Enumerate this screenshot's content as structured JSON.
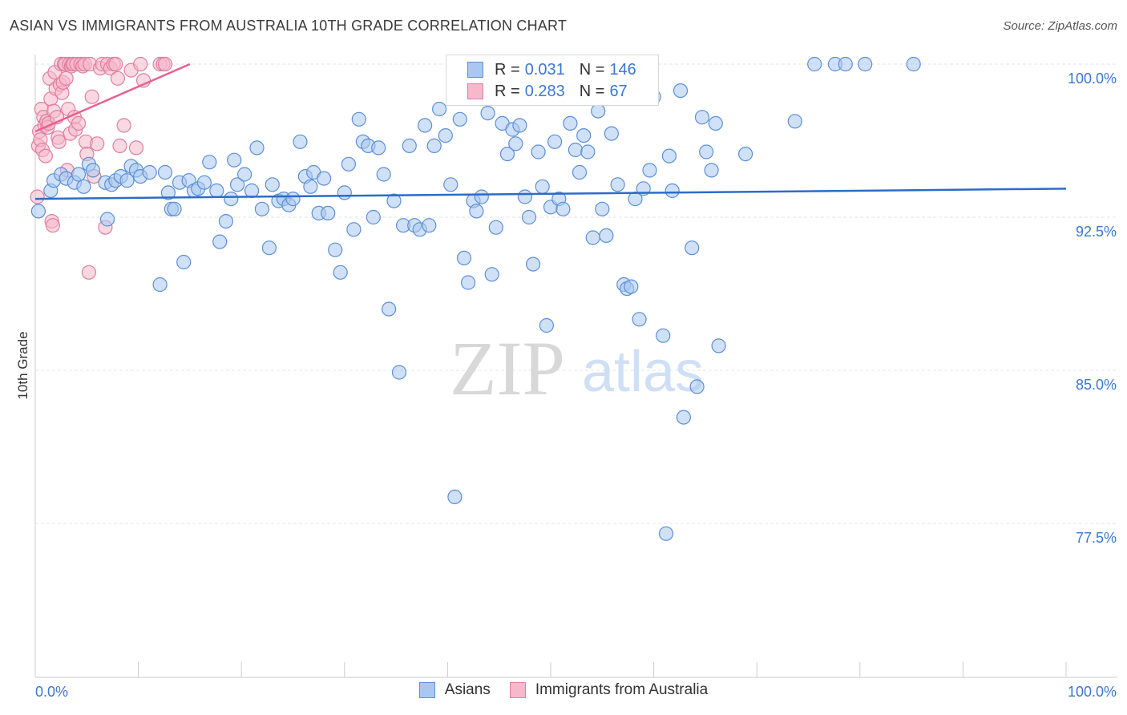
{
  "title": "ASIAN VS IMMIGRANTS FROM AUSTRALIA 10TH GRADE CORRELATION CHART",
  "source": "Source: ZipAtlas.com",
  "watermark": {
    "zip": "ZIP",
    "atlas": "atlas"
  },
  "colors": {
    "blue_fill": "#a9c8f0",
    "blue_stroke": "#5b8fd6",
    "blue_line": "#2b6cc9",
    "pink_fill": "#f6b8cb",
    "pink_stroke": "#e07ea0",
    "pink_line": "#e8608e",
    "axis_text": "#3b78d0",
    "grid": "#e3e3e3"
  },
  "legend": {
    "rows": [
      {
        "r_label": "R =",
        "r_value": "0.031",
        "n_label": "N =",
        "n_value": "146"
      },
      {
        "r_label": "R =",
        "r_value": "0.283",
        "n_label": "N =",
        "n_value": "67"
      }
    ]
  },
  "bottom_legend": {
    "items": [
      "Asians",
      "Immigrants from Australia"
    ]
  },
  "chart_data": {
    "type": "scatter",
    "title": "ASIAN VS IMMIGRANTS FROM AUSTRALIA 10TH GRADE CORRELATION CHART",
    "xlabel": "",
    "ylabel": "10th Grade",
    "xlim": [
      0,
      100
    ],
    "ylim": [
      70,
      100
    ],
    "x_tick_labels": [
      "0.0%",
      "100.0%"
    ],
    "y_ticks": [
      100,
      92.5,
      85,
      77.5
    ],
    "y_tick_labels": [
      "100.0%",
      "92.5%",
      "85.0%",
      "77.5%"
    ],
    "grid": true,
    "legend_position": "top-center",
    "series": [
      {
        "name": "Asians",
        "trend": [
          [
            0,
            93.4
          ],
          [
            100,
            93.9
          ]
        ],
        "points": [
          [
            0.3,
            92.8
          ],
          [
            1.5,
            93.8
          ],
          [
            1.8,
            94.3
          ],
          [
            2.5,
            94.6
          ],
          [
            3,
            94.4
          ],
          [
            3.8,
            94.2
          ],
          [
            4.2,
            94.6
          ],
          [
            4.7,
            94.0
          ],
          [
            5.2,
            95.1
          ],
          [
            5.6,
            94.8
          ],
          [
            6.8,
            94.2
          ],
          [
            7.0,
            92.4
          ],
          [
            7.4,
            94.1
          ],
          [
            7.8,
            94.3
          ],
          [
            8.3,
            94.5
          ],
          [
            8.9,
            94.3
          ],
          [
            9.3,
            95.0
          ],
          [
            9.8,
            94.8
          ],
          [
            10.2,
            94.5
          ],
          [
            11.1,
            94.7
          ],
          [
            12.1,
            89.2
          ],
          [
            12.6,
            94.7
          ],
          [
            12.9,
            93.7
          ],
          [
            13.2,
            92.9
          ],
          [
            13.5,
            92.9
          ],
          [
            14.0,
            94.2
          ],
          [
            14.4,
            90.3
          ],
          [
            14.9,
            94.3
          ],
          [
            15.4,
            93.8
          ],
          [
            15.8,
            93.9
          ],
          [
            16.4,
            94.2
          ],
          [
            16.9,
            95.2
          ],
          [
            17.6,
            93.8
          ],
          [
            17.9,
            91.3
          ],
          [
            18.5,
            92.3
          ],
          [
            19.0,
            93.4
          ],
          [
            19.3,
            95.3
          ],
          [
            19.6,
            94.1
          ],
          [
            20.3,
            94.6
          ],
          [
            21.0,
            93.8
          ],
          [
            21.5,
            95.9
          ],
          [
            22.0,
            92.9
          ],
          [
            22.7,
            91.0
          ],
          [
            23.0,
            94.1
          ],
          [
            23.6,
            93.3
          ],
          [
            24.1,
            93.4
          ],
          [
            24.6,
            93.1
          ],
          [
            25.0,
            93.4
          ],
          [
            25.7,
            96.2
          ],
          [
            26.2,
            94.5
          ],
          [
            26.7,
            94.0
          ],
          [
            27.0,
            94.7
          ],
          [
            27.5,
            92.7
          ],
          [
            28.0,
            94.4
          ],
          [
            28.4,
            92.7
          ],
          [
            29.1,
            90.9
          ],
          [
            29.6,
            89.8
          ],
          [
            30.0,
            93.7
          ],
          [
            30.4,
            95.1
          ],
          [
            30.9,
            91.9
          ],
          [
            31.4,
            97.3
          ],
          [
            31.8,
            96.2
          ],
          [
            32.3,
            96.0
          ],
          [
            32.8,
            92.5
          ],
          [
            33.3,
            95.9
          ],
          [
            33.8,
            94.6
          ],
          [
            34.3,
            88.0
          ],
          [
            34.8,
            93.3
          ],
          [
            35.3,
            84.9
          ],
          [
            35.7,
            92.1
          ],
          [
            36.3,
            96.0
          ],
          [
            36.8,
            92.1
          ],
          [
            37.3,
            91.9
          ],
          [
            37.8,
            97.0
          ],
          [
            38.2,
            92.1
          ],
          [
            38.7,
            96.0
          ],
          [
            39.2,
            97.8
          ],
          [
            39.8,
            96.5
          ],
          [
            40.3,
            94.1
          ],
          [
            40.7,
            78.8
          ],
          [
            41.2,
            97.3
          ],
          [
            41.6,
            90.5
          ],
          [
            42.0,
            89.3
          ],
          [
            42.5,
            93.3
          ],
          [
            42.8,
            92.8
          ],
          [
            43.3,
            93.5
          ],
          [
            43.9,
            97.6
          ],
          [
            44.3,
            89.7
          ],
          [
            44.7,
            92.0
          ],
          [
            45.3,
            97.1
          ],
          [
            45.8,
            95.6
          ],
          [
            46.3,
            96.8
          ],
          [
            46.6,
            96.1
          ],
          [
            47.0,
            97.0
          ],
          [
            47.5,
            93.5
          ],
          [
            47.9,
            92.5
          ],
          [
            48.3,
            90.2
          ],
          [
            48.8,
            95.7
          ],
          [
            49.2,
            94.0
          ],
          [
            49.6,
            87.2
          ],
          [
            50.0,
            93.0
          ],
          [
            50.4,
            96.2
          ],
          [
            50.8,
            93.4
          ],
          [
            51.2,
            92.9
          ],
          [
            51.9,
            97.1
          ],
          [
            52.4,
            95.8
          ],
          [
            52.8,
            94.7
          ],
          [
            53.2,
            96.5
          ],
          [
            53.6,
            95.7
          ],
          [
            54.1,
            91.5
          ],
          [
            54.6,
            97.7
          ],
          [
            55.0,
            92.9
          ],
          [
            55.4,
            91.6
          ],
          [
            55.9,
            96.6
          ],
          [
            56.5,
            94.1
          ],
          [
            57.1,
            89.2
          ],
          [
            57.4,
            89.0
          ],
          [
            57.8,
            89.1
          ],
          [
            58.2,
            93.4
          ],
          [
            58.6,
            87.5
          ],
          [
            59.0,
            93.9
          ],
          [
            59.6,
            94.8
          ],
          [
            60.0,
            98.4
          ],
          [
            60.9,
            86.7
          ],
          [
            61.2,
            77.0
          ],
          [
            61.5,
            95.5
          ],
          [
            61.8,
            93.8
          ],
          [
            62.6,
            98.7
          ],
          [
            62.9,
            82.7
          ],
          [
            63.7,
            91.0
          ],
          [
            64.2,
            84.2
          ],
          [
            64.7,
            97.4
          ],
          [
            65.1,
            95.7
          ],
          [
            65.6,
            94.8
          ],
          [
            66.0,
            97.1
          ],
          [
            66.3,
            86.2
          ],
          [
            68.9,
            95.6
          ],
          [
            73.7,
            97.2
          ],
          [
            75.6,
            100
          ],
          [
            77.6,
            100
          ],
          [
            78.6,
            100
          ],
          [
            80.5,
            100
          ],
          [
            85.2,
            100
          ]
        ]
      },
      {
        "name": "Immigrants from Australia",
        "trend": [
          [
            0,
            96.7
          ],
          [
            15,
            100
          ]
        ],
        "points": [
          [
            0.2,
            93.5
          ],
          [
            0.3,
            96.0
          ],
          [
            0.4,
            96.7
          ],
          [
            0.5,
            96.3
          ],
          [
            0.6,
            97.8
          ],
          [
            0.7,
            95.8
          ],
          [
            0.8,
            97.4
          ],
          [
            0.9,
            97.0
          ],
          [
            1.0,
            95.5
          ],
          [
            1.1,
            97.2
          ],
          [
            1.2,
            96.9
          ],
          [
            1.3,
            97.1
          ],
          [
            1.4,
            99.3
          ],
          [
            1.5,
            98.3
          ],
          [
            1.6,
            92.3
          ],
          [
            1.7,
            92.1
          ],
          [
            1.8,
            97.7
          ],
          [
            1.9,
            99.6
          ],
          [
            2.0,
            98.8
          ],
          [
            2.1,
            97.4
          ],
          [
            2.2,
            96.4
          ],
          [
            2.3,
            96.2
          ],
          [
            2.4,
            99.0
          ],
          [
            2.5,
            100
          ],
          [
            2.6,
            98.6
          ],
          [
            2.7,
            99.1
          ],
          [
            2.8,
            100
          ],
          [
            2.9,
            100
          ],
          [
            3.0,
            99.3
          ],
          [
            3.1,
            94.8
          ],
          [
            3.2,
            97.8
          ],
          [
            3.3,
            100
          ],
          [
            3.4,
            96.6
          ],
          [
            3.5,
            99.9
          ],
          [
            3.6,
            100
          ],
          [
            3.7,
            100
          ],
          [
            3.8,
            97.4
          ],
          [
            3.9,
            96.8
          ],
          [
            4.0,
            100
          ],
          [
            4.2,
            97.1
          ],
          [
            4.4,
            100
          ],
          [
            4.6,
            99.9
          ],
          [
            4.8,
            100
          ],
          [
            4.9,
            96.2
          ],
          [
            5.0,
            95.6
          ],
          [
            5.2,
            89.8
          ],
          [
            5.3,
            100
          ],
          [
            5.5,
            98.4
          ],
          [
            5.7,
            94.5
          ],
          [
            6.0,
            96.1
          ],
          [
            6.3,
            99.8
          ],
          [
            6.5,
            100
          ],
          [
            6.8,
            92.0
          ],
          [
            7.0,
            100
          ],
          [
            7.3,
            99.8
          ],
          [
            7.6,
            100
          ],
          [
            7.8,
            100
          ],
          [
            8.0,
            99.3
          ],
          [
            8.2,
            96.0
          ],
          [
            8.6,
            97.0
          ],
          [
            9.3,
            99.7
          ],
          [
            9.8,
            95.9
          ],
          [
            10.2,
            100
          ],
          [
            10.5,
            99.2
          ],
          [
            12.1,
            100
          ],
          [
            12.4,
            100
          ],
          [
            12.6,
            100
          ]
        ]
      }
    ]
  }
}
